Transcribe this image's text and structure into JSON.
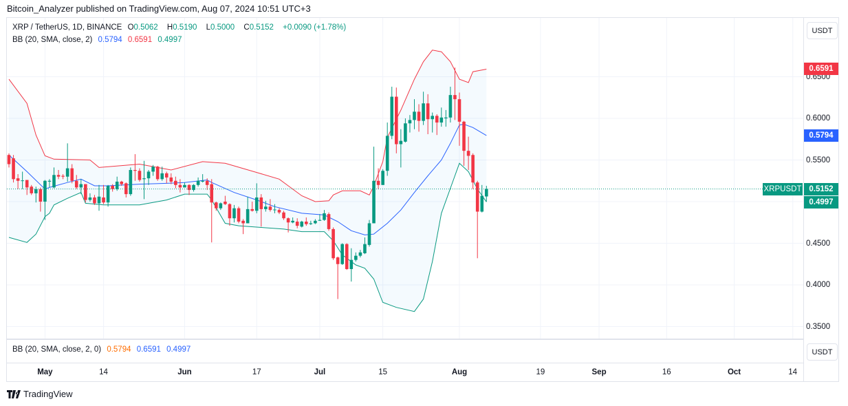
{
  "header": {
    "published": "Bitcoin_Analyzer published on TradingView.com, Aug 07, 2024 10:51 UTC+3"
  },
  "legend": {
    "symbol": "XRP / TetherUS, 1D, BINANCE",
    "o_label": "O",
    "o": "0.5062",
    "h_label": "H",
    "h": "0.5190",
    "l_label": "L",
    "l": "0.5000",
    "c_label": "C",
    "c": "0.5152",
    "change": "+0.0090 (+1.78%)",
    "bb": "BB (20, SMA, close, 2)",
    "bb_basis": "0.5794",
    "bb_upper": "0.6591",
    "bb_lower": "0.4997"
  },
  "pane2": {
    "bb": "BB (20, SMA, close, 2, 0)",
    "v1": "0.5794",
    "v2": "0.6591",
    "v3": "0.4997",
    "currency": "USDT"
  },
  "price_axis": {
    "currency": "USDT",
    "ticks": [
      "0.6500",
      "0.6000",
      "0.5500",
      "0.4500",
      "0.4000",
      "0.3500"
    ],
    "tags": {
      "upper": "0.6591",
      "basis": "0.5794",
      "symbol": "XRPUSDT",
      "last": "0.5152",
      "lower": "0.4997"
    }
  },
  "footer": {
    "brand": "TradingView"
  },
  "colors": {
    "up": "#089981",
    "down": "#F23645",
    "basis": "#2962FF",
    "upper": "#F23645",
    "lower": "#089981",
    "band_fill": "#2196F3"
  },
  "chart_data": {
    "type": "candlestick",
    "title": "XRP / TetherUS, 1D, BINANCE",
    "ylim": [
      0.33,
      0.715
    ],
    "yticks": [
      0.35,
      0.4,
      0.45,
      0.5,
      0.55,
      0.6,
      0.65
    ],
    "xticks": [
      {
        "date": "2024-05-01",
        "label": "May",
        "month": true
      },
      {
        "date": "2024-05-14",
        "label": "14"
      },
      {
        "date": "2024-06-01",
        "label": "Jun",
        "month": true
      },
      {
        "date": "2024-06-17",
        "label": "17"
      },
      {
        "date": "2024-07-01",
        "label": "Jul",
        "month": true
      },
      {
        "date": "2024-07-15",
        "label": "15"
      },
      {
        "date": "2024-08-01",
        "label": "Aug",
        "month": true
      },
      {
        "date": "2024-08-19",
        "label": "19"
      },
      {
        "date": "2024-09-01",
        "label": "Sep",
        "month": true
      },
      {
        "date": "2024-09-16",
        "label": "16"
      },
      {
        "date": "2024-10-01",
        "label": "Oct",
        "month": true
      },
      {
        "date": "2024-10-14",
        "label": "14"
      }
    ],
    "grid": true,
    "last_price": 0.5152,
    "candles": [
      [
        "2024-04-23",
        0.556,
        0.558,
        0.541,
        0.545
      ],
      [
        "2024-04-24",
        0.552,
        0.556,
        0.523,
        0.527
      ],
      [
        "2024-04-25",
        0.528,
        0.533,
        0.515,
        0.525
      ],
      [
        "2024-04-26",
        0.525,
        0.536,
        0.515,
        0.5255
      ],
      [
        "2024-04-27",
        0.526,
        0.526,
        0.508,
        0.517
      ],
      [
        "2024-04-28",
        0.518,
        0.52,
        0.508,
        0.51
      ],
      [
        "2024-04-29",
        0.51,
        0.518,
        0.499,
        0.515
      ],
      [
        "2024-04-30",
        0.515,
        0.517,
        0.488,
        0.5
      ],
      [
        "2024-05-01",
        0.5,
        0.526,
        0.478,
        0.525
      ],
      [
        "2024-05-02",
        0.524,
        0.527,
        0.517,
        0.525
      ],
      [
        "2024-05-03",
        0.517,
        0.541,
        0.516,
        0.532
      ],
      [
        "2024-05-04",
        0.532,
        0.538,
        0.527,
        0.53
      ],
      [
        "2024-05-05",
        0.531,
        0.533,
        0.527,
        0.53
      ],
      [
        "2024-05-06",
        0.53,
        0.57,
        0.524,
        0.54
      ],
      [
        "2024-05-07",
        0.54,
        0.545,
        0.522,
        0.525
      ],
      [
        "2024-05-08",
        0.525,
        0.532,
        0.515,
        0.517
      ],
      [
        "2024-05-09",
        0.517,
        0.527,
        0.509,
        0.521
      ],
      [
        "2024-05-10",
        0.521,
        0.521,
        0.499,
        0.502
      ],
      [
        "2024-05-11",
        0.502,
        0.51,
        0.5,
        0.505
      ],
      [
        "2024-05-12",
        0.505,
        0.508,
        0.496,
        0.498
      ],
      [
        "2024-05-13",
        0.498,
        0.52,
        0.489,
        0.506
      ],
      [
        "2024-05-14",
        0.505,
        0.52,
        0.497,
        0.499
      ],
      [
        "2024-05-15",
        0.499,
        0.52,
        0.494,
        0.519
      ],
      [
        "2024-05-16",
        0.519,
        0.521,
        0.512,
        0.515
      ],
      [
        "2024-05-17",
        0.515,
        0.53,
        0.513,
        0.524
      ],
      [
        "2024-05-18",
        0.524,
        0.525,
        0.519,
        0.521
      ],
      [
        "2024-05-19",
        0.522,
        0.523,
        0.505,
        0.509
      ],
      [
        "2024-05-20",
        0.509,
        0.541,
        0.507,
        0.538
      ],
      [
        "2024-05-21",
        0.538,
        0.557,
        0.525,
        0.537
      ],
      [
        "2024-05-22",
        0.537,
        0.54,
        0.524,
        0.526
      ],
      [
        "2024-05-23",
        0.527,
        0.549,
        0.503,
        0.528
      ],
      [
        "2024-05-24",
        0.528,
        0.538,
        0.52,
        0.536
      ],
      [
        "2024-05-25",
        0.536,
        0.544,
        0.531,
        0.542
      ],
      [
        "2024-05-26",
        0.542,
        0.543,
        0.525,
        0.527
      ],
      [
        "2024-05-27",
        0.527,
        0.542,
        0.525,
        0.534
      ],
      [
        "2024-05-28",
        0.534,
        0.536,
        0.522,
        0.529
      ],
      [
        "2024-05-29",
        0.529,
        0.534,
        0.521,
        0.524
      ],
      [
        "2024-05-30",
        0.525,
        0.53,
        0.516,
        0.52
      ],
      [
        "2024-05-31",
        0.52,
        0.527,
        0.511,
        0.517
      ],
      [
        "2024-06-01",
        0.517,
        0.523,
        0.517,
        0.52
      ],
      [
        "2024-06-02",
        0.52,
        0.521,
        0.508,
        0.514
      ],
      [
        "2024-06-03",
        0.514,
        0.521,
        0.512,
        0.52
      ],
      [
        "2024-06-04",
        0.52,
        0.529,
        0.518,
        0.525
      ],
      [
        "2024-06-05",
        0.524,
        0.533,
        0.523,
        0.525
      ],
      [
        "2024-06-06",
        0.525,
        0.528,
        0.514,
        0.52
      ],
      [
        "2024-06-07",
        0.521,
        0.527,
        0.451,
        0.499
      ],
      [
        "2024-06-08",
        0.499,
        0.5,
        0.489,
        0.492
      ],
      [
        "2024-06-09",
        0.492,
        0.499,
        0.49,
        0.498
      ],
      [
        "2024-06-10",
        0.5,
        0.507,
        0.496,
        0.497
      ],
      [
        "2024-06-11",
        0.497,
        0.498,
        0.471,
        0.48
      ],
      [
        "2024-06-12",
        0.48,
        0.496,
        0.475,
        0.492
      ],
      [
        "2024-06-13",
        0.492,
        0.494,
        0.474,
        0.476
      ],
      [
        "2024-06-14",
        0.477,
        0.479,
        0.461,
        0.474
      ],
      [
        "2024-06-15",
        0.474,
        0.506,
        0.474,
        0.491
      ],
      [
        "2024-06-16",
        0.491,
        0.5,
        0.488,
        0.489
      ],
      [
        "2024-06-17",
        0.489,
        0.522,
        0.486,
        0.505
      ],
      [
        "2024-06-18",
        0.505,
        0.509,
        0.47,
        0.491
      ],
      [
        "2024-06-19",
        0.491,
        0.501,
        0.488,
        0.494
      ],
      [
        "2024-06-20",
        0.494,
        0.503,
        0.488,
        0.49
      ],
      [
        "2024-06-21",
        0.49,
        0.497,
        0.486,
        0.4905
      ],
      [
        "2024-06-22",
        0.49,
        0.492,
        0.485,
        0.487
      ],
      [
        "2024-06-23",
        0.487,
        0.489,
        0.478,
        0.48
      ],
      [
        "2024-06-24",
        0.48,
        0.481,
        0.463,
        0.475
      ],
      [
        "2024-06-25",
        0.475,
        0.481,
        0.474,
        0.477
      ],
      [
        "2024-06-26",
        0.476,
        0.48,
        0.468,
        0.471
      ],
      [
        "2024-06-27",
        0.47,
        0.477,
        0.469,
        0.476
      ],
      [
        "2024-06-28",
        0.476,
        0.481,
        0.471,
        0.473
      ],
      [
        "2024-06-29",
        0.473,
        0.477,
        0.472,
        0.474
      ],
      [
        "2024-06-30",
        0.474,
        0.479,
        0.473,
        0.477
      ],
      [
        "2024-07-01",
        0.477,
        0.485,
        0.477,
        0.478
      ],
      [
        "2024-07-02",
        0.478,
        0.49,
        0.477,
        0.486
      ],
      [
        "2024-07-03",
        0.485,
        0.487,
        0.465,
        0.467
      ],
      [
        "2024-07-04",
        0.467,
        0.469,
        0.43,
        0.432
      ],
      [
        "2024-07-05",
        0.433,
        0.434,
        0.383,
        0.425
      ],
      [
        "2024-07-06",
        0.425,
        0.45,
        0.424,
        0.449
      ],
      [
        "2024-07-07",
        0.449,
        0.45,
        0.418,
        0.419
      ],
      [
        "2024-07-08",
        0.419,
        0.444,
        0.404,
        0.43
      ],
      [
        "2024-07-09",
        0.43,
        0.439,
        0.428,
        0.435
      ],
      [
        "2024-07-10",
        0.435,
        0.442,
        0.433,
        0.439
      ],
      [
        "2024-07-11",
        0.438,
        0.457,
        0.437,
        0.449
      ],
      [
        "2024-07-12",
        0.448,
        0.478,
        0.446,
        0.474
      ],
      [
        "2024-07-13",
        0.474,
        0.566,
        0.474,
        0.525
      ],
      [
        "2024-07-14",
        0.525,
        0.54,
        0.515,
        0.52
      ],
      [
        "2024-07-15",
        0.52,
        0.539,
        0.52,
        0.537
      ],
      [
        "2024-07-16",
        0.537,
        0.595,
        0.531,
        0.579
      ],
      [
        "2024-07-17",
        0.579,
        0.638,
        0.575,
        0.626
      ],
      [
        "2024-07-18",
        0.626,
        0.637,
        0.558,
        0.569
      ],
      [
        "2024-07-19",
        0.569,
        0.587,
        0.541,
        0.573
      ],
      [
        "2024-07-20",
        0.572,
        0.6,
        0.571,
        0.594
      ],
      [
        "2024-07-21",
        0.594,
        0.604,
        0.583,
        0.598
      ],
      [
        "2024-07-22",
        0.598,
        0.623,
        0.587,
        0.608
      ],
      [
        "2024-07-23",
        0.608,
        0.617,
        0.584,
        0.597
      ],
      [
        "2024-07-24",
        0.597,
        0.632,
        0.592,
        0.618
      ],
      [
        "2024-07-25",
        0.618,
        0.629,
        0.581,
        0.599
      ],
      [
        "2024-07-26",
        0.599,
        0.607,
        0.583,
        0.603
      ],
      [
        "2024-07-27",
        0.603,
        0.605,
        0.58,
        0.595
      ],
      [
        "2024-07-28",
        0.595,
        0.613,
        0.59,
        0.601
      ],
      [
        "2024-07-29",
        0.6,
        0.61,
        0.59,
        0.601
      ],
      [
        "2024-07-30",
        0.601,
        0.638,
        0.595,
        0.628
      ],
      [
        "2024-07-31",
        0.628,
        0.661,
        0.598,
        0.623
      ],
      [
        "2024-08-01",
        0.623,
        0.631,
        0.567,
        0.596
      ],
      [
        "2024-08-02",
        0.596,
        0.597,
        0.543,
        0.561
      ],
      [
        "2024-08-03",
        0.561,
        0.578,
        0.538,
        0.555
      ],
      [
        "2024-08-04",
        0.556,
        0.558,
        0.515,
        0.523
      ],
      [
        "2024-08-05",
        0.523,
        0.525,
        0.432,
        0.488
      ],
      [
        "2024-08-06",
        0.488,
        0.52,
        0.487,
        0.507
      ],
      [
        "2024-08-07",
        0.5062,
        0.519,
        0.5,
        0.5152
      ]
    ],
    "bands": {
      "upper": [
        [
          "2024-04-23",
          0.647
        ],
        [
          "2024-04-27",
          0.618
        ],
        [
          "2024-04-29",
          0.58
        ],
        [
          "2024-05-01",
          0.555
        ],
        [
          "2024-05-03",
          0.551
        ],
        [
          "2024-05-11",
          0.55
        ],
        [
          "2024-05-13",
          0.541
        ],
        [
          "2024-05-22",
          0.545
        ],
        [
          "2024-05-29",
          0.538
        ],
        [
          "2024-06-05",
          0.548
        ],
        [
          "2024-06-10",
          0.546
        ],
        [
          "2024-06-17",
          0.535
        ],
        [
          "2024-06-22",
          0.527
        ],
        [
          "2024-06-24",
          0.519
        ],
        [
          "2024-06-27",
          0.507
        ],
        [
          "2024-06-30",
          0.5
        ],
        [
          "2024-07-03",
          0.501
        ],
        [
          "2024-07-04",
          0.508
        ],
        [
          "2024-07-06",
          0.513
        ],
        [
          "2024-07-10",
          0.513
        ],
        [
          "2024-07-12",
          0.508
        ],
        [
          "2024-07-13",
          0.519
        ],
        [
          "2024-07-15",
          0.548
        ],
        [
          "2024-07-16",
          0.577
        ],
        [
          "2024-07-19",
          0.61
        ],
        [
          "2024-07-22",
          0.647
        ],
        [
          "2024-07-24",
          0.668
        ],
        [
          "2024-07-26",
          0.682
        ],
        [
          "2024-07-28",
          0.68
        ],
        [
          "2024-07-30",
          0.668
        ],
        [
          "2024-08-01",
          0.647
        ],
        [
          "2024-08-03",
          0.643
        ],
        [
          "2024-08-04",
          0.656
        ],
        [
          "2024-08-07",
          0.6591
        ]
      ],
      "basis": [
        [
          "2024-04-23",
          0.556
        ],
        [
          "2024-04-27",
          0.536
        ],
        [
          "2024-05-01",
          0.515
        ],
        [
          "2024-05-02",
          0.517
        ],
        [
          "2024-05-06",
          0.523
        ],
        [
          "2024-05-09",
          0.527
        ],
        [
          "2024-05-12",
          0.519
        ],
        [
          "2024-05-15",
          0.519
        ],
        [
          "2024-05-22",
          0.521
        ],
        [
          "2024-05-28",
          0.522
        ],
        [
          "2024-06-01",
          0.523
        ],
        [
          "2024-06-06",
          0.526
        ],
        [
          "2024-06-07",
          0.523
        ],
        [
          "2024-06-12",
          0.511
        ],
        [
          "2024-06-17",
          0.502
        ],
        [
          "2024-06-21",
          0.494
        ],
        [
          "2024-06-27",
          0.486
        ],
        [
          "2024-07-02",
          0.484
        ],
        [
          "2024-07-05",
          0.476
        ],
        [
          "2024-07-08",
          0.465
        ],
        [
          "2024-07-11",
          0.46
        ],
        [
          "2024-07-13",
          0.461
        ],
        [
          "2024-07-16",
          0.474
        ],
        [
          "2024-07-19",
          0.49
        ],
        [
          "2024-07-22",
          0.511
        ],
        [
          "2024-07-25",
          0.531
        ],
        [
          "2024-07-28",
          0.55
        ],
        [
          "2024-07-30",
          0.57
        ],
        [
          "2024-08-01",
          0.592
        ],
        [
          "2024-08-02",
          0.593
        ],
        [
          "2024-08-04",
          0.589
        ],
        [
          "2024-08-07",
          0.5794
        ]
      ],
      "lower": [
        [
          "2024-04-23",
          0.457
        ],
        [
          "2024-04-27",
          0.451
        ],
        [
          "2024-04-29",
          0.461
        ],
        [
          "2024-05-01",
          0.482
        ],
        [
          "2024-05-02",
          0.486
        ],
        [
          "2024-05-03",
          0.496
        ],
        [
          "2024-05-06",
          0.504
        ],
        [
          "2024-05-09",
          0.511
        ],
        [
          "2024-05-10",
          0.498
        ],
        [
          "2024-05-14",
          0.496
        ],
        [
          "2024-05-22",
          0.496
        ],
        [
          "2024-05-28",
          0.502
        ],
        [
          "2024-06-01",
          0.509
        ],
        [
          "2024-06-06",
          0.509
        ],
        [
          "2024-06-07",
          0.502
        ],
        [
          "2024-06-10",
          0.474
        ],
        [
          "2024-06-13",
          0.471
        ],
        [
          "2024-06-18",
          0.469
        ],
        [
          "2024-06-23",
          0.467
        ],
        [
          "2024-06-27",
          0.464
        ],
        [
          "2024-07-02",
          0.464
        ],
        [
          "2024-07-04",
          0.453
        ],
        [
          "2024-07-06",
          0.436
        ],
        [
          "2024-07-09",
          0.424
        ],
        [
          "2024-07-11",
          0.42
        ],
        [
          "2024-07-13",
          0.407
        ],
        [
          "2024-07-15",
          0.379
        ],
        [
          "2024-07-18",
          0.373
        ],
        [
          "2024-07-22",
          0.368
        ],
        [
          "2024-07-24",
          0.383
        ],
        [
          "2024-07-26",
          0.428
        ],
        [
          "2024-07-28",
          0.486
        ],
        [
          "2024-07-31",
          0.531
        ],
        [
          "2024-08-01",
          0.546
        ],
        [
          "2024-08-03",
          0.536
        ],
        [
          "2024-08-05",
          0.515
        ],
        [
          "2024-08-07",
          0.4997
        ]
      ]
    }
  }
}
